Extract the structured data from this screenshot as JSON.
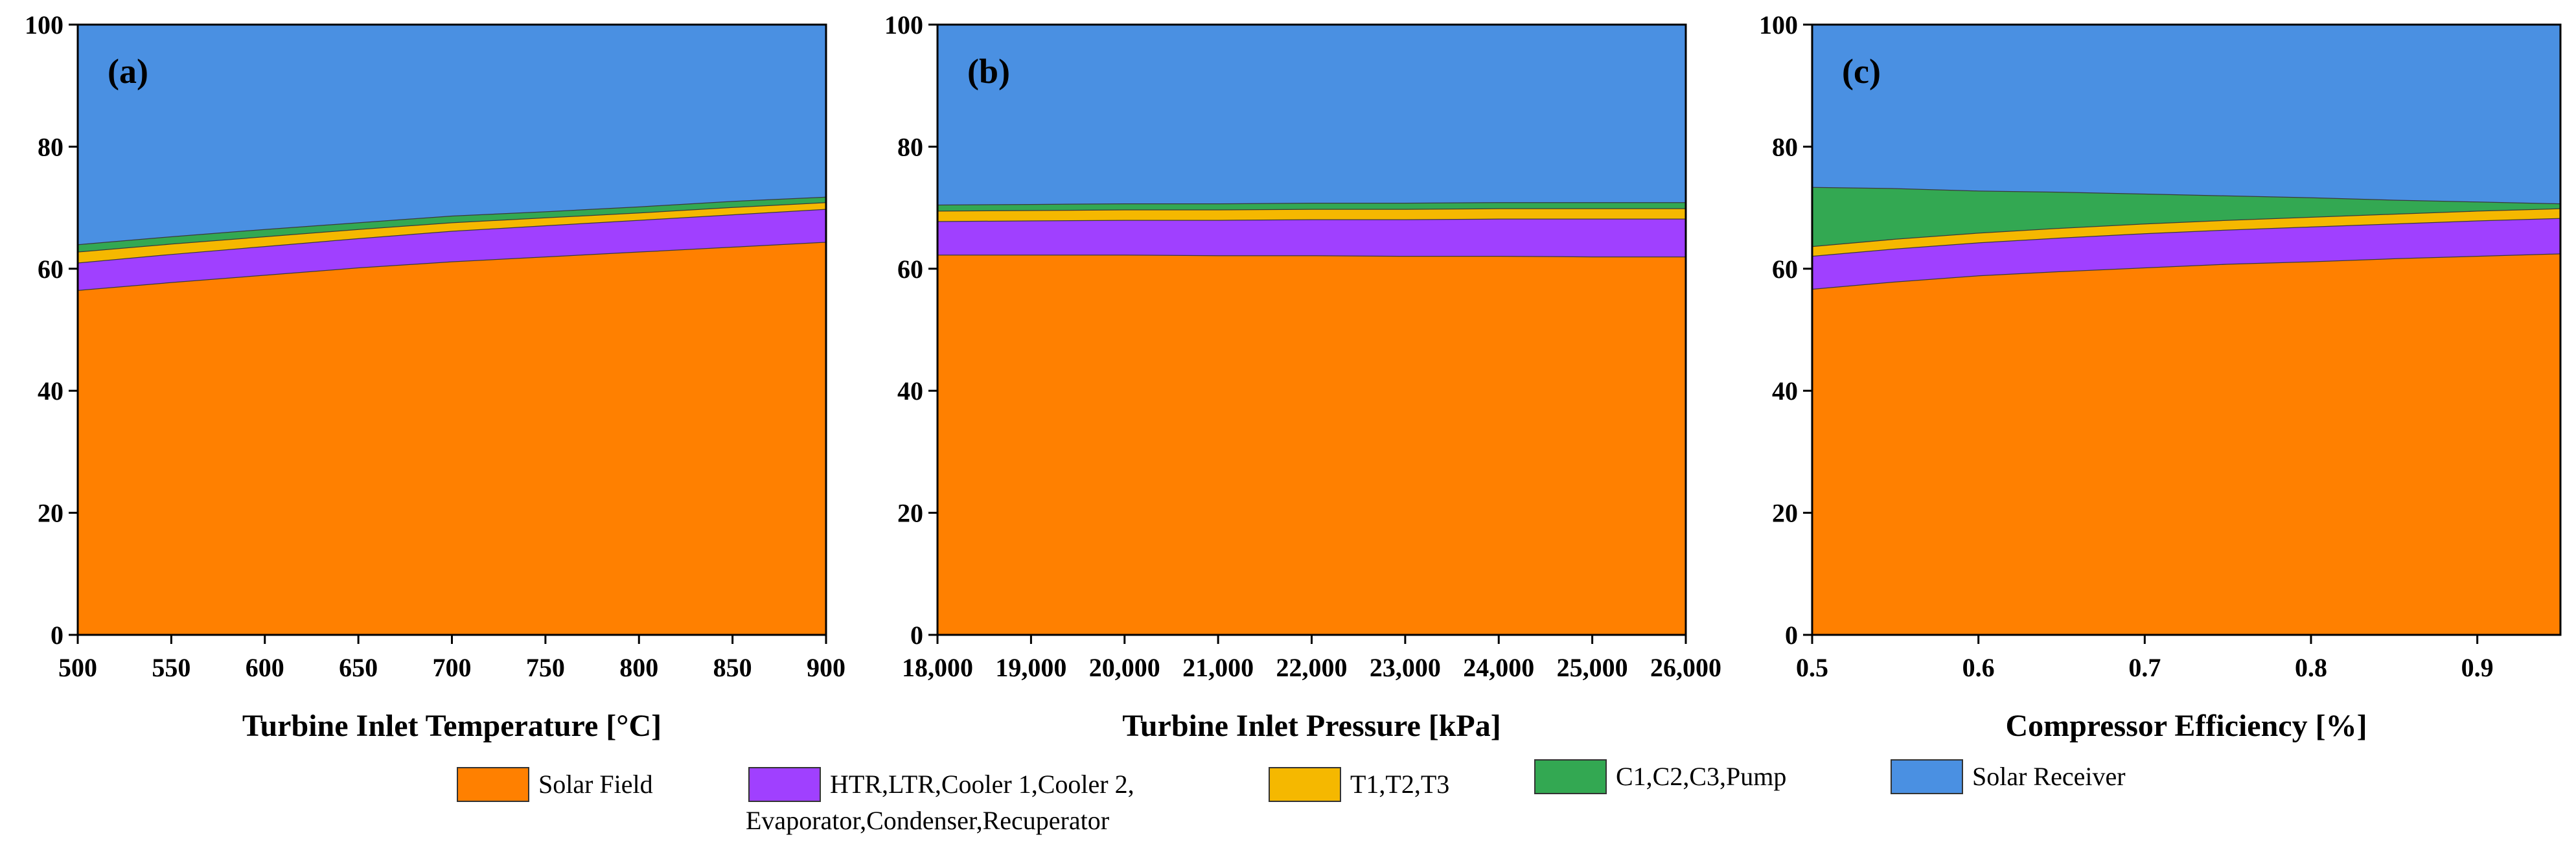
{
  "chart_data": [
    {
      "type": "area",
      "stacked": true,
      "panel_label": "(a)",
      "xlabel": "Turbine Inlet Temperature [°C]",
      "ylabel": "",
      "xlim": [
        500,
        900
      ],
      "ylim": [
        0,
        100
      ],
      "xticks": [
        500,
        550,
        600,
        650,
        700,
        750,
        800,
        850,
        900
      ],
      "xtick_labels": [
        "500",
        "550",
        "600",
        "650",
        "700",
        "750",
        "800",
        "850",
        "900"
      ],
      "yticks": [
        0,
        20,
        40,
        60,
        80,
        100
      ],
      "ytick_labels": [
        "0",
        "20",
        "40",
        "60",
        "80",
        "100"
      ],
      "x": [
        500,
        550,
        600,
        650,
        700,
        750,
        800,
        850,
        900
      ],
      "series": [
        {
          "name": "Solar Field",
          "color": "#FF8000",
          "values": [
            56.5,
            57.8,
            59.0,
            60.2,
            61.2,
            62.0,
            62.8,
            63.6,
            64.4
          ]
        },
        {
          "name": "HTR,LTR,Cooler 1,Cooler 2, Evaporator,Condenser,Recuperator",
          "color": "#A040FF",
          "values": [
            4.5,
            4.6,
            4.7,
            4.8,
            5.0,
            5.1,
            5.2,
            5.3,
            5.4
          ]
        },
        {
          "name": "T1,T2,T3",
          "color": "#F5B800",
          "values": [
            1.8,
            1.7,
            1.6,
            1.5,
            1.4,
            1.3,
            1.2,
            1.2,
            1.1
          ]
        },
        {
          "name": "C1,C2,C3,Pump",
          "color": "#33A852",
          "values": [
            1.2,
            1.2,
            1.2,
            1.1,
            1.1,
            1.0,
            1.0,
            1.0,
            0.9
          ]
        },
        {
          "name": "Solar Receiver",
          "color": "#4A90E2",
          "values": [
            36.0,
            34.7,
            33.5,
            32.4,
            31.3,
            30.6,
            29.8,
            28.9,
            28.2
          ]
        }
      ]
    },
    {
      "type": "area",
      "stacked": true,
      "panel_label": "(b)",
      "xlabel": "Turbine Inlet Pressure [kPa]",
      "ylabel": "",
      "xlim": [
        18000,
        26000
      ],
      "ylim": [
        0,
        100
      ],
      "xticks": [
        18000,
        19000,
        20000,
        21000,
        22000,
        23000,
        24000,
        25000,
        26000
      ],
      "xtick_labels": [
        "18,000",
        "19,000",
        "20,000",
        "21,000",
        "22,000",
        "23,000",
        "24,000",
        "25,000",
        "26,000"
      ],
      "yticks": [
        0,
        20,
        40,
        60,
        80,
        100
      ],
      "ytick_labels": [
        "0",
        "20",
        "40",
        "60",
        "80",
        "100"
      ],
      "x": [
        18000,
        19000,
        20000,
        21000,
        22000,
        23000,
        24000,
        25000,
        26000
      ],
      "series": [
        {
          "name": "Solar Field",
          "color": "#FF8000",
          "values": [
            62.3,
            62.3,
            62.3,
            62.2,
            62.2,
            62.1,
            62.1,
            62.0,
            62.0
          ]
        },
        {
          "name": "HTR,LTR,Cooler 1,Cooler 2, Evaporator,Condenser,Recuperator",
          "color": "#A040FF",
          "values": [
            5.5,
            5.6,
            5.7,
            5.8,
            5.9,
            6.0,
            6.1,
            6.2,
            6.2
          ]
        },
        {
          "name": "T1,T2,T3",
          "color": "#F5B800",
          "values": [
            1.7,
            1.7,
            1.7,
            1.7,
            1.7,
            1.7,
            1.7,
            1.7,
            1.7
          ]
        },
        {
          "name": "C1,C2,C3,Pump",
          "color": "#33A852",
          "values": [
            1.0,
            1.0,
            1.0,
            1.0,
            1.0,
            1.0,
            1.0,
            1.0,
            1.0
          ]
        },
        {
          "name": "Solar Receiver",
          "color": "#4A90E2",
          "values": [
            29.5,
            29.4,
            29.3,
            29.3,
            29.2,
            29.2,
            29.1,
            29.1,
            29.1
          ]
        }
      ]
    },
    {
      "type": "area",
      "stacked": true,
      "panel_label": "(c)",
      "xlabel": "Compressor Efficiency [%]",
      "ylabel": "",
      "xlim": [
        0.5,
        0.95
      ],
      "ylim": [
        0,
        100
      ],
      "xticks": [
        0.5,
        0.6,
        0.7,
        0.8,
        0.9
      ],
      "xtick_labels": [
        "0.5",
        "0.6",
        "0.7",
        "0.8",
        "0.9"
      ],
      "yticks": [
        0,
        20,
        40,
        60,
        80,
        100
      ],
      "ytick_labels": [
        "0",
        "20",
        "40",
        "60",
        "80",
        "100"
      ],
      "x": [
        0.5,
        0.55,
        0.6,
        0.65,
        0.7,
        0.75,
        0.8,
        0.85,
        0.9,
        0.95
      ],
      "series": [
        {
          "name": "Solar Field",
          "color": "#FF8000",
          "values": [
            56.7,
            57.9,
            58.9,
            59.6,
            60.2,
            60.8,
            61.2,
            61.7,
            62.1,
            62.5
          ]
        },
        {
          "name": "HTR,LTR,Cooler 1,Cooler 2, Evaporator,Condenser,Recuperator",
          "color": "#A040FF",
          "values": [
            5.4,
            5.4,
            5.4,
            5.5,
            5.6,
            5.6,
            5.7,
            5.7,
            5.8,
            5.8
          ]
        },
        {
          "name": "T1,T2,T3",
          "color": "#F5B800",
          "values": [
            1.6,
            1.6,
            1.6,
            1.6,
            1.6,
            1.6,
            1.6,
            1.6,
            1.6,
            1.6
          ]
        },
        {
          "name": "C1,C2,C3,Pump",
          "color": "#33A852",
          "values": [
            9.7,
            8.3,
            6.9,
            5.9,
            4.9,
            4.0,
            3.2,
            2.3,
            1.5,
            0.8
          ]
        },
        {
          "name": "Solar Receiver",
          "color": "#4A90E2",
          "values": [
            26.6,
            26.8,
            27.2,
            27.4,
            27.7,
            28.0,
            28.3,
            28.7,
            29.0,
            29.3
          ]
        }
      ]
    }
  ],
  "legend": {
    "items": [
      {
        "color": "#FF8000",
        "lines": [
          "Solar Field"
        ]
      },
      {
        "color": "#A040FF",
        "lines": [
          "HTR,LTR,Cooler 1,Cooler 2,",
          "Evaporator,Condenser,Recuperator"
        ]
      },
      {
        "color": "#F5B800",
        "lines": [
          "T1,T2,T3"
        ]
      },
      {
        "color": "#33A852",
        "lines": [
          "C1,C2,C3,Pump"
        ]
      },
      {
        "color": "#4A90E2",
        "lines": [
          "Solar Receiver"
        ]
      }
    ]
  }
}
